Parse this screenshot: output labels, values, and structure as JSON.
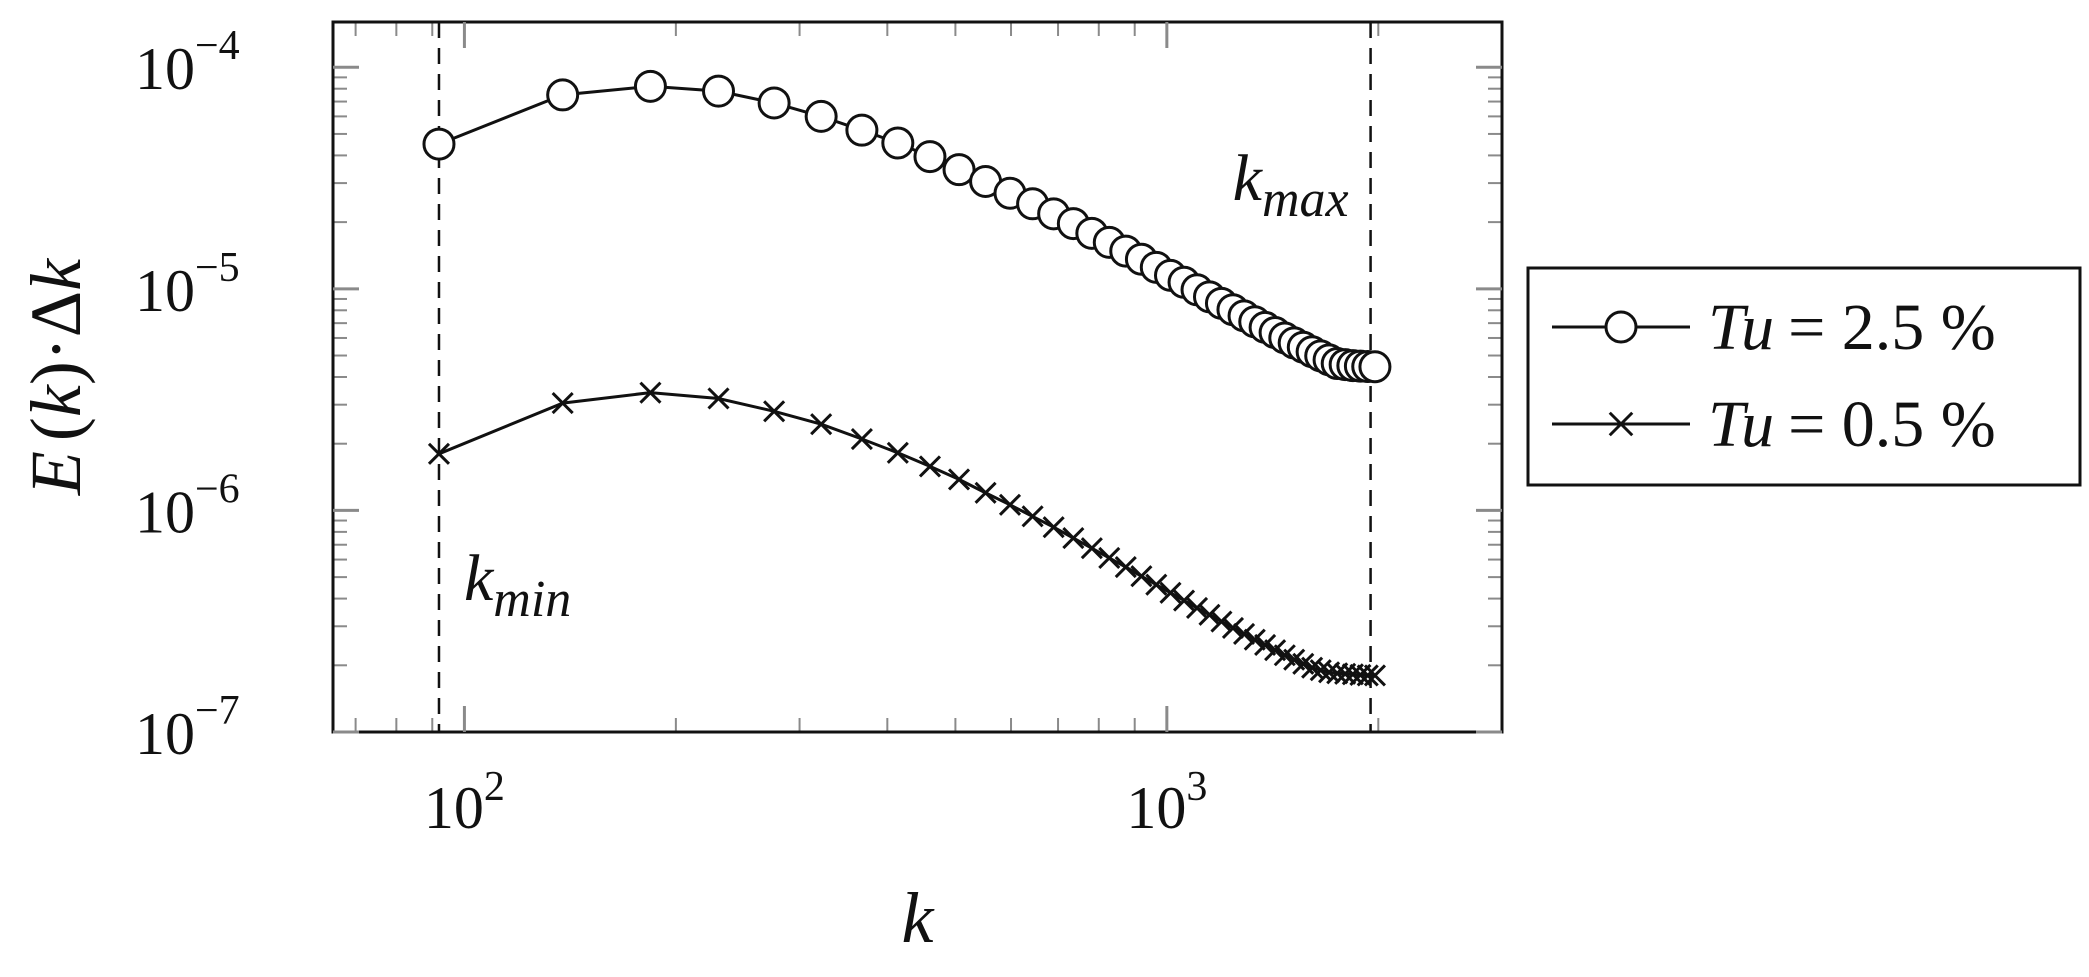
{
  "chart_data": {
    "type": "line",
    "xscale": "log",
    "yscale": "log",
    "xlim": [
      65,
      3000
    ],
    "ylim": [
      1e-07,
      0.00016
    ],
    "xlabel": "k",
    "ylabel_parts": {
      "E": "E",
      "lp": "(",
      "k": "k",
      "rp": ")",
      "dot": "·",
      "delta": "Δ",
      "k2": "k"
    },
    "xticks": [
      {
        "value": 100,
        "base": "10",
        "exp": "2"
      },
      {
        "value": 1000,
        "base": "10",
        "exp": "3"
      }
    ],
    "yticks": [
      {
        "value": 0.0001,
        "base": "10",
        "exp": "−4"
      },
      {
        "value": 1e-05,
        "base": "10",
        "exp": "−5"
      },
      {
        "value": 1e-06,
        "base": "10",
        "exp": "−6"
      },
      {
        "value": 1e-07,
        "base": "10",
        "exp": "−7"
      }
    ],
    "vlines": [
      {
        "x": 92,
        "label_base": "k",
        "label_sub": "min"
      },
      {
        "x": 1950,
        "label_base": "k",
        "label_sub": "max"
      }
    ],
    "legend_position": "outside-right",
    "series": [
      {
        "name_var": "Tu",
        "name_value": "= 2.5 %",
        "marker": "circle",
        "x": [
          92,
          138,
          184,
          230,
          276,
          322,
          368,
          414,
          460,
          506,
          552,
          598,
          644,
          690,
          736,
          782,
          828,
          874,
          920,
          966,
          1012,
          1058,
          1104,
          1150,
          1196,
          1242,
          1288,
          1334,
          1380,
          1426,
          1472,
          1518,
          1564,
          1610,
          1656,
          1702,
          1748,
          1794,
          1840,
          1886,
          1932,
          1978
        ],
        "y": [
          4.5e-05,
          7.5e-05,
          8.2e-05,
          7.8e-05,
          6.9e-05,
          6e-05,
          5.2e-05,
          4.55e-05,
          3.95e-05,
          3.45e-05,
          3.05e-05,
          2.7e-05,
          2.42e-05,
          2.18e-05,
          1.97e-05,
          1.78e-05,
          1.62e-05,
          1.48e-05,
          1.36e-05,
          1.25e-05,
          1.15e-05,
          1.07e-05,
          9.9e-06,
          9.2e-06,
          8.6e-06,
          8.05e-06,
          7.55e-06,
          7.1e-06,
          6.7e-06,
          6.35e-06,
          6e-06,
          5.7e-06,
          5.45e-06,
          5.2e-06,
          4.98e-06,
          4.78e-06,
          4.6e-06,
          4.55e-06,
          4.5e-06,
          4.48e-06,
          4.46e-06,
          4.45e-06
        ]
      },
      {
        "name_var": "Tu",
        "name_value": "= 0.5 %",
        "marker": "cross",
        "x": [
          92,
          138,
          184,
          230,
          276,
          322,
          368,
          414,
          460,
          506,
          552,
          598,
          644,
          690,
          736,
          782,
          828,
          874,
          920,
          966,
          1012,
          1058,
          1104,
          1150,
          1196,
          1242,
          1288,
          1334,
          1380,
          1426,
          1472,
          1518,
          1564,
          1610,
          1656,
          1702,
          1748,
          1794,
          1840,
          1886,
          1932,
          1978
        ],
        "y": [
          1.8e-06,
          3.05e-06,
          3.4e-06,
          3.2e-06,
          2.8e-06,
          2.45e-06,
          2.1e-06,
          1.82e-06,
          1.58e-06,
          1.38e-06,
          1.2e-06,
          1.06e-06,
          9.4e-07,
          8.4e-07,
          7.5e-07,
          6.75e-07,
          6.1e-07,
          5.55e-07,
          5.05e-07,
          4.62e-07,
          4.25e-07,
          3.92e-07,
          3.63e-07,
          3.38e-07,
          3.15e-07,
          2.95e-07,
          2.77e-07,
          2.61e-07,
          2.47e-07,
          2.34e-07,
          2.22e-07,
          2.12e-07,
          2.03e-07,
          1.95e-07,
          1.9e-07,
          1.86e-07,
          1.84e-07,
          1.83e-07,
          1.82e-07,
          1.81e-07,
          1.8e-07,
          1.8e-07
        ]
      }
    ]
  }
}
